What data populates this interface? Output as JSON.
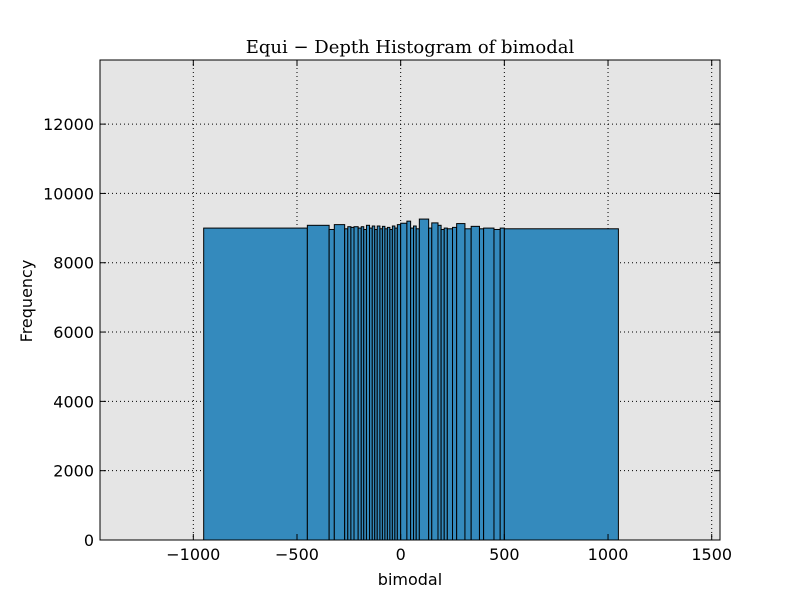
{
  "chart_data": {
    "type": "bar",
    "title": "Equi − Depth Histogram of bimodal",
    "xlabel": "bimodal",
    "ylabel": "Frequency",
    "xlim": [
      -1450,
      1540
    ],
    "ylim": [
      0,
      13850
    ],
    "xticks": [
      -1000,
      -500,
      0,
      500,
      1000,
      1500
    ],
    "xtick_labels": [
      "−1000",
      "−500",
      "0",
      "500",
      "1000",
      "1500"
    ],
    "yticks": [
      0,
      2000,
      4000,
      6000,
      8000,
      10000,
      12000
    ],
    "ytick_labels": [
      "0",
      "2000",
      "4000",
      "6000",
      "8000",
      "10000",
      "12000"
    ],
    "grid": true,
    "bar_color": "#348abd",
    "plot_background": "#e5e5e5",
    "bins": [
      {
        "x0": -950,
        "x1": -450,
        "value": 9000
      },
      {
        "x0": -450,
        "x1": -345,
        "value": 9080
      },
      {
        "x0": -345,
        "x1": -320,
        "value": 8960
      },
      {
        "x0": -320,
        "x1": -270,
        "value": 9100
      },
      {
        "x0": -270,
        "x1": -255,
        "value": 8980
      },
      {
        "x0": -255,
        "x1": -240,
        "value": 9040
      },
      {
        "x0": -240,
        "x1": -225,
        "value": 9020
      },
      {
        "x0": -225,
        "x1": -205,
        "value": 9040
      },
      {
        "x0": -205,
        "x1": -190,
        "value": 9000
      },
      {
        "x0": -190,
        "x1": -178,
        "value": 9040
      },
      {
        "x0": -178,
        "x1": -165,
        "value": 8960
      },
      {
        "x0": -165,
        "x1": -150,
        "value": 9080
      },
      {
        "x0": -150,
        "x1": -137,
        "value": 9000
      },
      {
        "x0": -137,
        "x1": -125,
        "value": 9060
      },
      {
        "x0": -125,
        "x1": -113,
        "value": 8960
      },
      {
        "x0": -113,
        "x1": -100,
        "value": 9060
      },
      {
        "x0": -100,
        "x1": -88,
        "value": 8980
      },
      {
        "x0": -88,
        "x1": -76,
        "value": 9050
      },
      {
        "x0": -76,
        "x1": -64,
        "value": 8980
      },
      {
        "x0": -64,
        "x1": -52,
        "value": 9020
      },
      {
        "x0": -52,
        "x1": -40,
        "value": 8960
      },
      {
        "x0": -40,
        "x1": -28,
        "value": 9060
      },
      {
        "x0": -28,
        "x1": -16,
        "value": 9000
      },
      {
        "x0": -16,
        "x1": 0,
        "value": 9100
      },
      {
        "x0": 0,
        "x1": 30,
        "value": 9140
      },
      {
        "x0": 30,
        "x1": 48,
        "value": 9200
      },
      {
        "x0": 48,
        "x1": 62,
        "value": 9000
      },
      {
        "x0": 62,
        "x1": 75,
        "value": 9060
      },
      {
        "x0": 75,
        "x1": 90,
        "value": 8980
      },
      {
        "x0": 90,
        "x1": 135,
        "value": 9260
      },
      {
        "x0": 135,
        "x1": 150,
        "value": 9000
      },
      {
        "x0": 150,
        "x1": 180,
        "value": 9150
      },
      {
        "x0": 180,
        "x1": 195,
        "value": 9080
      },
      {
        "x0": 195,
        "x1": 210,
        "value": 8960
      },
      {
        "x0": 210,
        "x1": 225,
        "value": 9000
      },
      {
        "x0": 225,
        "x1": 250,
        "value": 8980
      },
      {
        "x0": 250,
        "x1": 270,
        "value": 9020
      },
      {
        "x0": 270,
        "x1": 310,
        "value": 9130
      },
      {
        "x0": 310,
        "x1": 340,
        "value": 8980
      },
      {
        "x0": 340,
        "x1": 380,
        "value": 9050
      },
      {
        "x0": 380,
        "x1": 400,
        "value": 8980
      },
      {
        "x0": 400,
        "x1": 450,
        "value": 9000
      },
      {
        "x0": 450,
        "x1": 480,
        "value": 8960
      },
      {
        "x0": 480,
        "x1": 500,
        "value": 9000
      },
      {
        "x0": 500,
        "x1": 1050,
        "value": 8980
      }
    ]
  }
}
